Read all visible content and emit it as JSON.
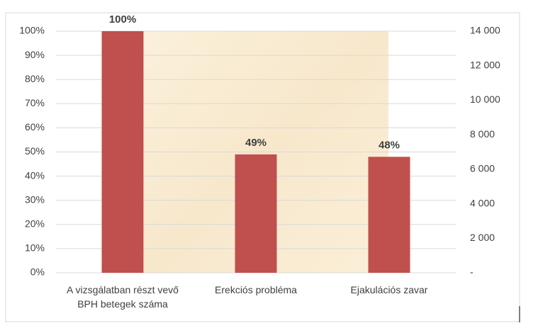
{
  "chart_data": {
    "type": "bar",
    "categories": [
      "A vizsgálatban részt vevő BPH betegek száma",
      "Erekciós probléma",
      "Ejakulációs zavar"
    ],
    "values": [
      100,
      49,
      48
    ],
    "value_labels": [
      "100%",
      "49%",
      "48%"
    ],
    "color": "#c0504d",
    "ylim": [
      0,
      100
    ],
    "yticks": [
      {
        "value": 0,
        "label": "0%"
      },
      {
        "value": 10,
        "label": "10%"
      },
      {
        "value": 20,
        "label": "20%"
      },
      {
        "value": 30,
        "label": "30%"
      },
      {
        "value": 40,
        "label": "40%"
      },
      {
        "value": 50,
        "label": "50%"
      },
      {
        "value": 60,
        "label": "60%"
      },
      {
        "value": 70,
        "label": "70%"
      },
      {
        "value": 80,
        "label": "80%"
      },
      {
        "value": 90,
        "label": "90%"
      },
      {
        "value": 100,
        "label": "100%"
      }
    ],
    "y2lim": [
      0,
      14000
    ],
    "y2ticks": [
      {
        "value": 0,
        "label": "-"
      },
      {
        "value": 2000,
        "label": "2 000"
      },
      {
        "value": 4000,
        "label": "4 000"
      },
      {
        "value": 6000,
        "label": "6 000"
      },
      {
        "value": 8000,
        "label": "8 000"
      },
      {
        "value": 10000,
        "label": "10 000"
      },
      {
        "value": 12000,
        "label": "12 000"
      },
      {
        "value": 14000,
        "label": "14 000"
      }
    ],
    "grid": true
  }
}
